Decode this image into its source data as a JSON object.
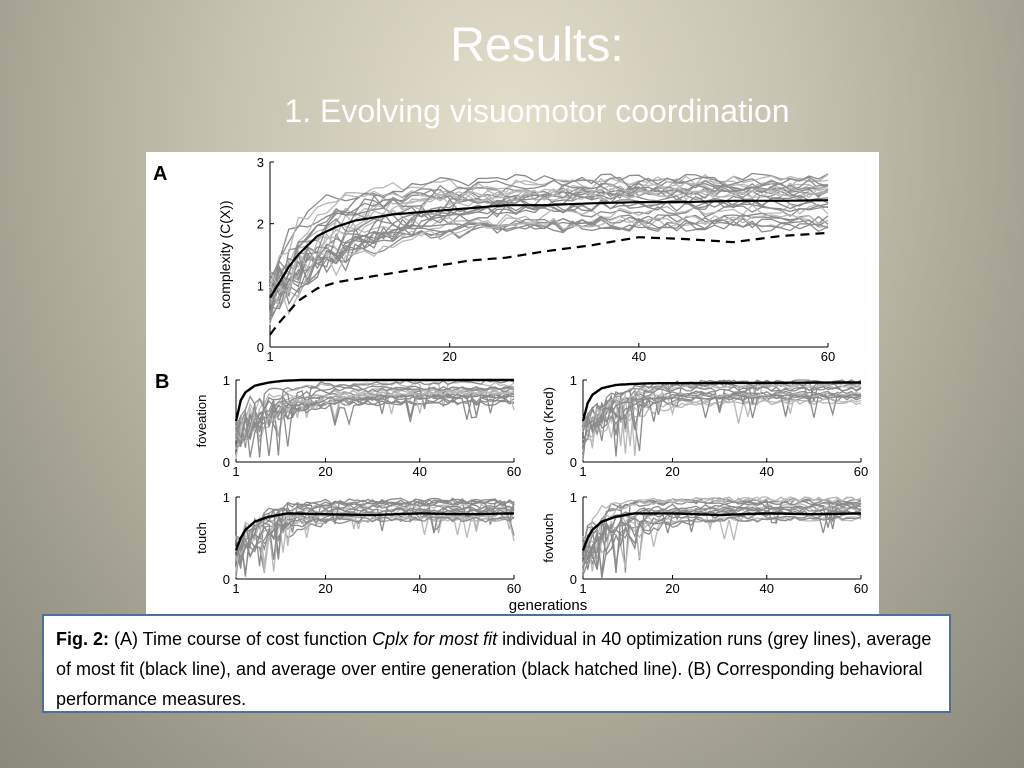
{
  "slide": {
    "title": "Results:",
    "subtitle": "1. Evolving visuomotor coordination"
  },
  "caption": {
    "fig_label": "Fig. 2:",
    "text_1": " (A) Time course of cost function ",
    "text_italic": "Cplx for most fit",
    "text_2": " individual in 40 optimization runs (grey lines), average of most fit (black line), and average over entire generation (black hatched line). (B) Corresponding behavioral performance measures."
  },
  "figure": {
    "panel_a_label": "A",
    "panel_b_label": "B",
    "shared_xlabel": "generations"
  },
  "chart_data": [
    {
      "id": "A",
      "type": "line",
      "ylabel": "complexity (C(X))",
      "xlim": [
        1,
        60
      ],
      "ylim": [
        0,
        3
      ],
      "xticks": [
        1,
        20,
        40,
        60
      ],
      "yticks": [
        0,
        1,
        2,
        3
      ],
      "series": [
        {
          "name": "average of most fit",
          "style": "solid",
          "color": "#000000",
          "x": [
            1,
            2,
            3,
            4,
            6,
            8,
            10,
            14,
            18,
            22,
            26,
            30,
            35,
            40,
            45,
            50,
            55,
            60
          ],
          "values": [
            0.8,
            1.05,
            1.3,
            1.5,
            1.8,
            1.95,
            2.05,
            2.15,
            2.2,
            2.25,
            2.3,
            2.3,
            2.33,
            2.35,
            2.35,
            2.37,
            2.37,
            2.38
          ]
        },
        {
          "name": "average over entire generation",
          "style": "dashed",
          "color": "#000000",
          "x": [
            1,
            2,
            4,
            6,
            8,
            10,
            14,
            18,
            22,
            26,
            30,
            35,
            40,
            45,
            50,
            55,
            60
          ],
          "values": [
            0.2,
            0.4,
            0.75,
            0.95,
            1.05,
            1.1,
            1.2,
            1.3,
            1.4,
            1.45,
            1.55,
            1.65,
            1.78,
            1.75,
            1.7,
            1.8,
            1.85
          ]
        }
      ]
    },
    {
      "id": "B1",
      "type": "line",
      "ylabel": "foveation",
      "xlim": [
        1,
        60
      ],
      "ylim": [
        0,
        1
      ],
      "xticks": [
        1,
        20,
        40,
        60
      ],
      "yticks": [
        0,
        1
      ],
      "series": [
        {
          "name": "average of most fit",
          "x": [
            1,
            2,
            3,
            5,
            8,
            11,
            15,
            60
          ],
          "values": [
            0.5,
            0.75,
            0.85,
            0.93,
            0.97,
            0.99,
            1.0,
            1.0
          ]
        }
      ]
    },
    {
      "id": "B2",
      "type": "line",
      "ylabel": "color (Kred)",
      "xlim": [
        1,
        60
      ],
      "ylim": [
        0,
        1
      ],
      "xticks": [
        1,
        20,
        40,
        60
      ],
      "yticks": [
        0,
        1
      ],
      "series": [
        {
          "name": "average of most fit",
          "x": [
            1,
            2,
            3,
            5,
            8,
            11,
            15,
            60
          ],
          "values": [
            0.5,
            0.72,
            0.82,
            0.9,
            0.94,
            0.95,
            0.96,
            0.97
          ]
        }
      ]
    },
    {
      "id": "B3",
      "type": "line",
      "ylabel": "touch",
      "xlim": [
        1,
        60
      ],
      "ylim": [
        0,
        1
      ],
      "xticks": [
        1,
        20,
        40,
        60
      ],
      "yticks": [
        0,
        1
      ],
      "series": [
        {
          "name": "average of most fit",
          "x": [
            1,
            2,
            3,
            5,
            8,
            12,
            20,
            30,
            40,
            50,
            60
          ],
          "values": [
            0.35,
            0.5,
            0.6,
            0.7,
            0.76,
            0.8,
            0.79,
            0.78,
            0.8,
            0.79,
            0.8
          ]
        }
      ]
    },
    {
      "id": "B4",
      "type": "line",
      "ylabel": "fovtouch",
      "xlim": [
        1,
        60
      ],
      "ylim": [
        0,
        1
      ],
      "xticks": [
        1,
        20,
        40,
        60
      ],
      "yticks": [
        0,
        1
      ],
      "series": [
        {
          "name": "average of most fit",
          "x": [
            1,
            2,
            3,
            5,
            8,
            12,
            20,
            30,
            40,
            50,
            60
          ],
          "values": [
            0.35,
            0.5,
            0.6,
            0.7,
            0.76,
            0.8,
            0.8,
            0.78,
            0.8,
            0.79,
            0.8
          ]
        }
      ]
    }
  ],
  "colors": {
    "caption_border": "#4f6fa0",
    "grey_runs": "#8a8a8a",
    "light_grey_runs": "#b8b8b8"
  }
}
